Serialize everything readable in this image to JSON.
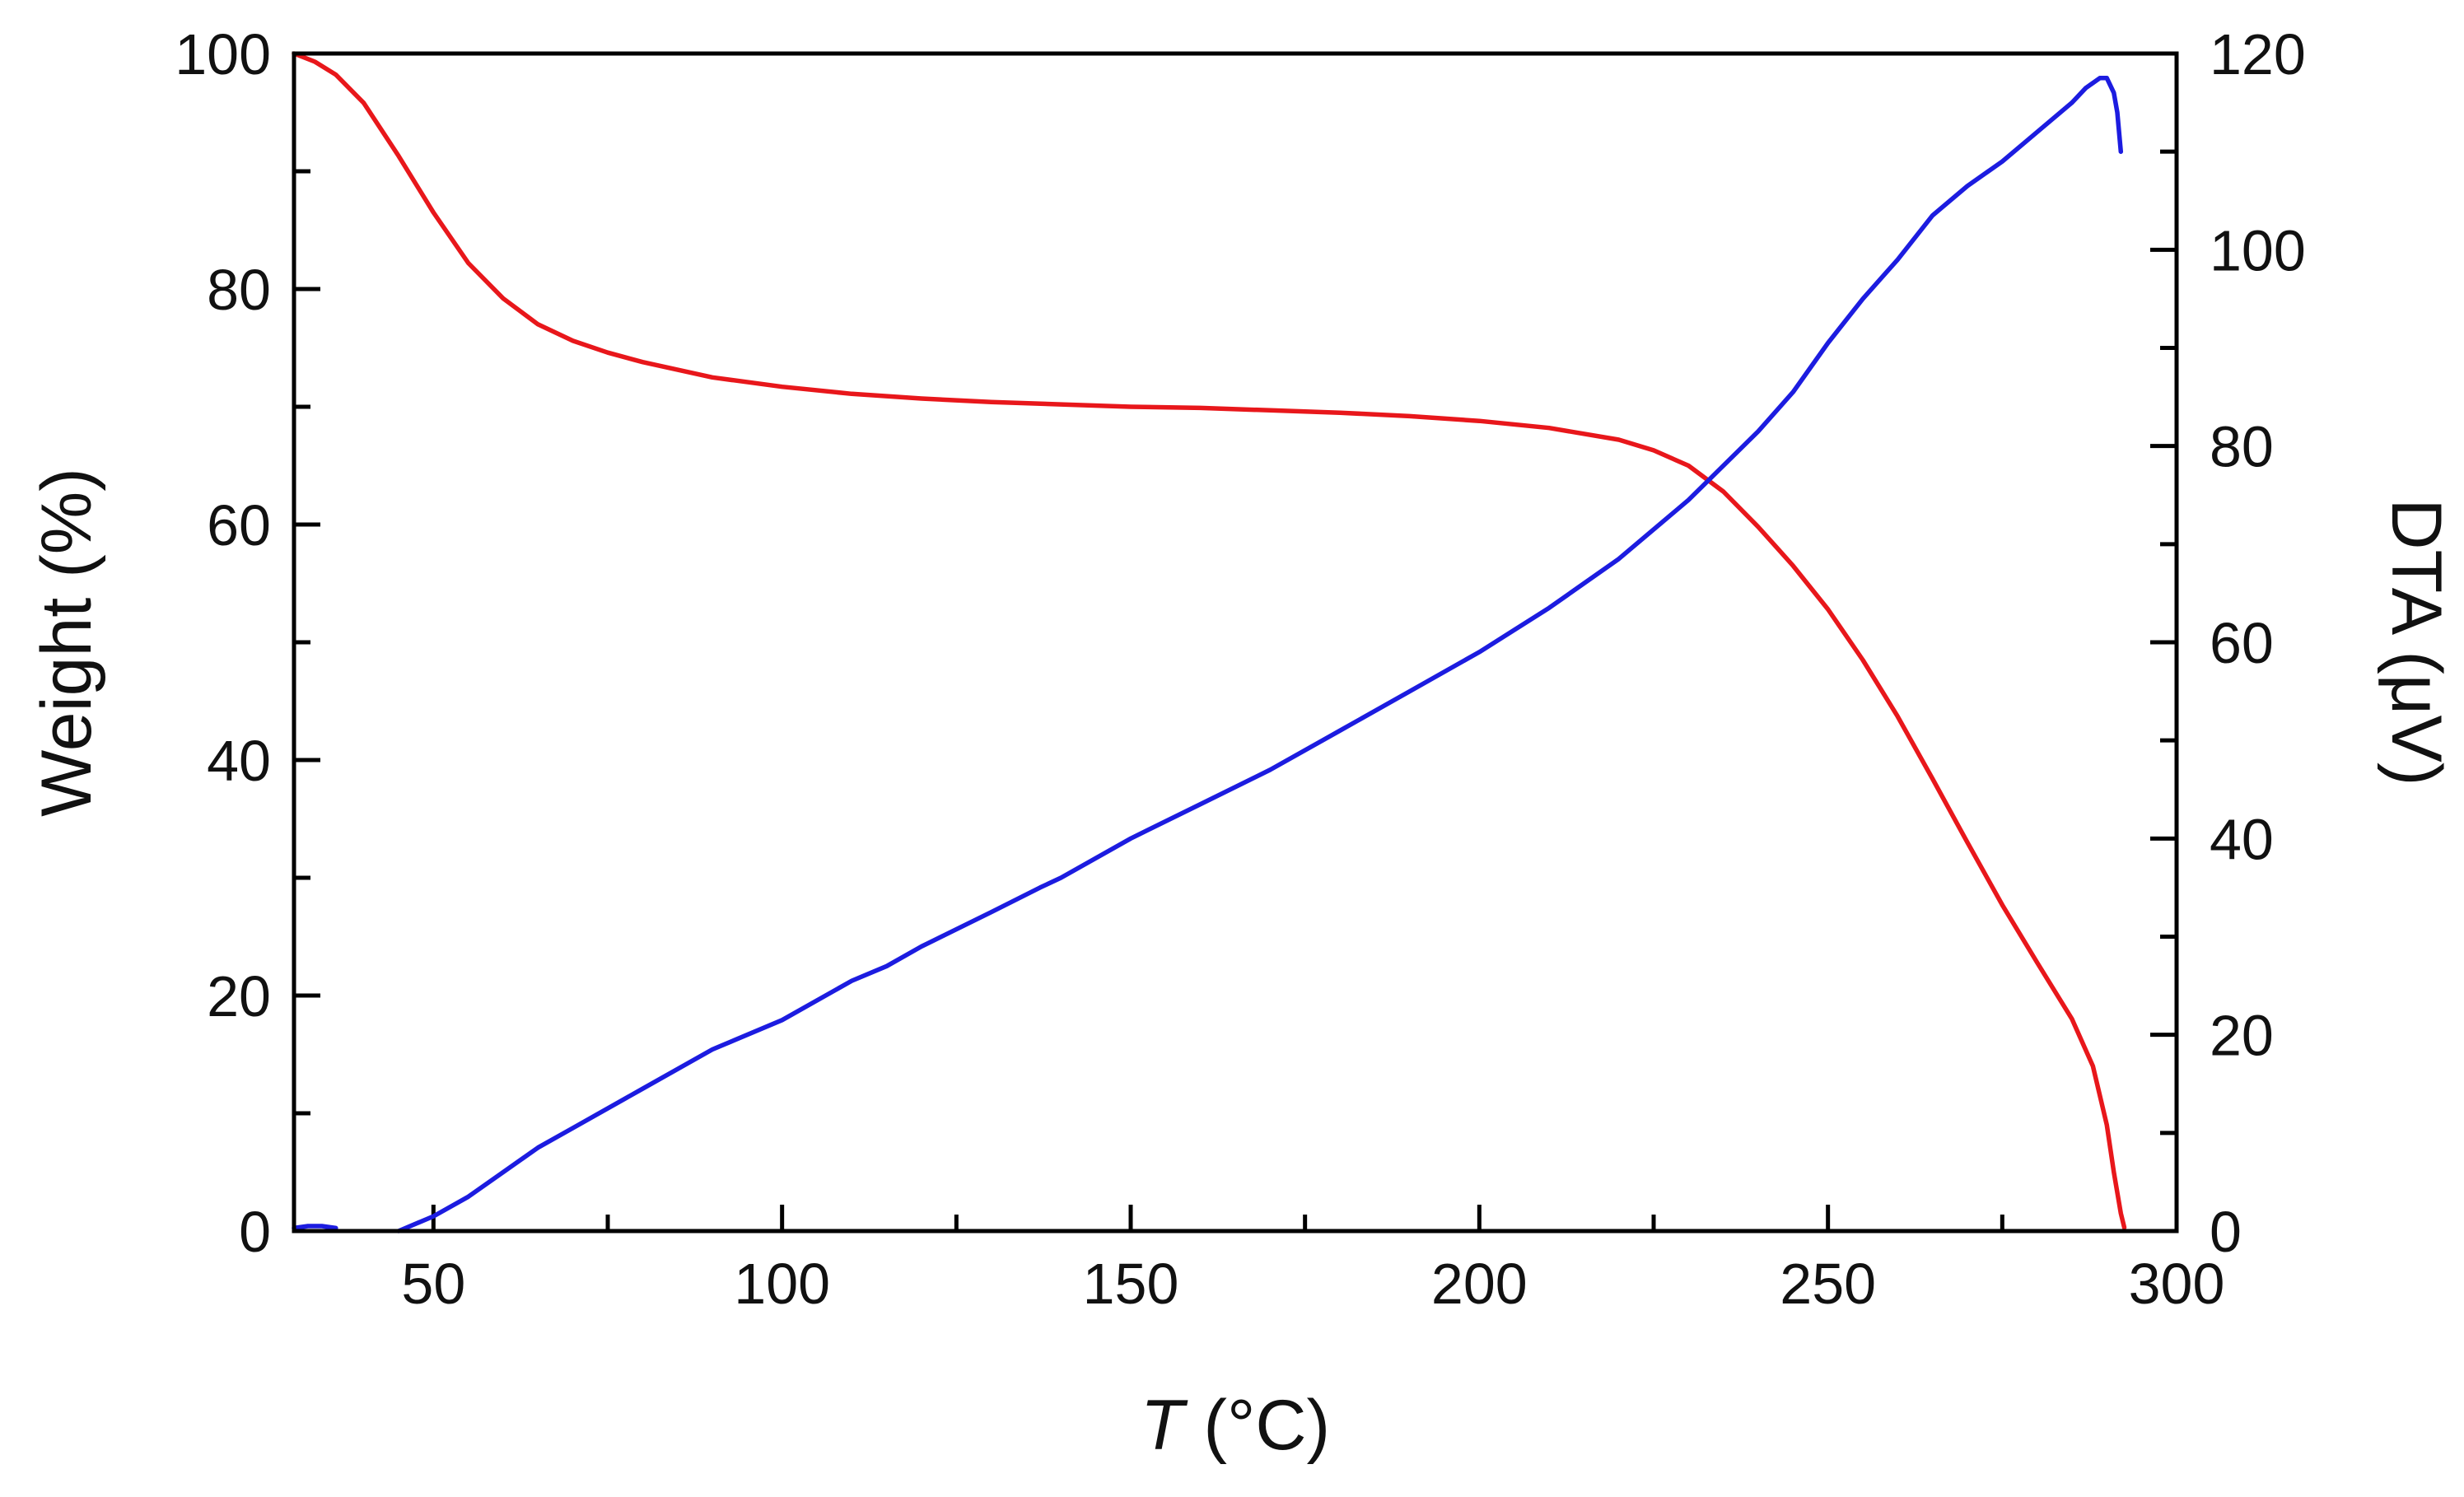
{
  "chart_data": {
    "type": "line",
    "title": "",
    "xlabel": {
      "symbol": "T",
      "unit": " (°C)"
    },
    "ylabel": "Weight (%)",
    "y2label": "DTA (μV)",
    "xlim": [
      30,
      300
    ],
    "ylim": [
      0,
      100
    ],
    "y2lim": [
      0,
      120
    ],
    "x_ticks": [
      50,
      100,
      150,
      200,
      250,
      300
    ],
    "x_minor_step": 25,
    "y_ticks": [
      0,
      20,
      40,
      60,
      80,
      100
    ],
    "y_minor_step": 10,
    "y2_ticks": [
      0,
      20,
      40,
      60,
      80,
      100,
      120
    ],
    "y2_minor_step": 10,
    "grid": false,
    "colors": {
      "weight": "#e8171b",
      "dta": "#1c1ce0",
      "axis": "#000000"
    },
    "series": [
      {
        "name": "Weight",
        "axis": "left",
        "x": [
          30,
          33,
          36,
          40,
          45,
          50,
          55,
          60,
          65,
          70,
          75,
          80,
          90,
          100,
          110,
          120,
          130,
          140,
          150,
          160,
          170,
          180,
          190,
          200,
          210,
          220,
          225,
          230,
          235,
          240,
          245,
          250,
          255,
          260,
          265,
          270,
          275,
          280,
          285,
          288,
          290,
          291,
          292,
          292.5
        ],
        "values": [
          100,
          99.3,
          98.2,
          95.8,
          91.3,
          86.5,
          82.2,
          79.2,
          77.0,
          75.6,
          74.6,
          73.8,
          72.5,
          71.7,
          71.1,
          70.7,
          70.4,
          70.2,
          70.0,
          69.9,
          69.7,
          69.5,
          69.2,
          68.8,
          68.2,
          67.2,
          66.3,
          65.0,
          62.8,
          59.8,
          56.5,
          52.8,
          48.5,
          43.7,
          38.4,
          33.0,
          27.7,
          22.8,
          18.0,
          14.0,
          9.0,
          5.0,
          1.5,
          0.3
        ]
      },
      {
        "name": "DTA",
        "axis": "right",
        "x": [
          30,
          32,
          34,
          36
        ],
        "values": [
          0.3,
          0.5,
          0.5,
          0.3
        ]
      },
      {
        "name": "DTA",
        "axis": "right",
        "x": [
          45,
          50,
          55,
          60,
          65,
          70,
          80,
          90,
          100,
          110,
          115,
          120,
          130,
          137,
          140,
          150,
          160,
          170,
          180,
          190,
          200,
          210,
          220,
          230,
          240,
          245,
          250,
          255,
          260,
          265,
          270,
          275,
          280,
          285,
          287,
          289,
          290,
          291,
          291.5,
          292
        ],
        "values": [
          0,
          1.5,
          3.5,
          6,
          8.5,
          10.5,
          14.5,
          18.5,
          21.5,
          25.5,
          27,
          29,
          32.5,
          35,
          36,
          40,
          43.5,
          47,
          51,
          55,
          59,
          63.5,
          68.5,
          74.5,
          81.5,
          85.5,
          90.5,
          95,
          99,
          103.5,
          106.5,
          109,
          112,
          115,
          116.5,
          117.5,
          117.5,
          116,
          114,
          110
        ]
      }
    ]
  }
}
